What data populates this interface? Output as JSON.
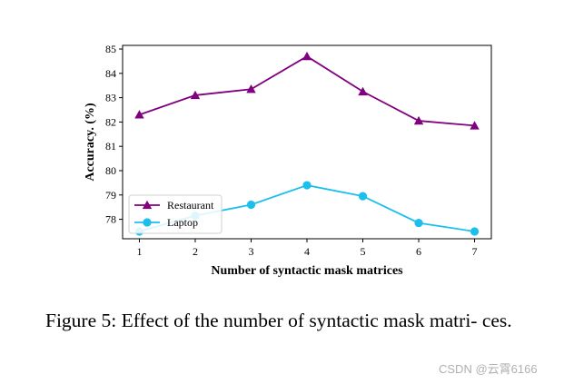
{
  "chart_data": {
    "type": "line",
    "x": [
      1,
      2,
      3,
      4,
      5,
      6,
      7
    ],
    "xlabel": "Number of syntactic mask matrices",
    "ylabel": "Accuracy. (%)",
    "xlim": [
      0.7,
      7.3
    ],
    "ylim": [
      77.2,
      85.15
    ],
    "xticks": [
      "1",
      "2",
      "3",
      "4",
      "5",
      "6",
      "7"
    ],
    "yticks": [
      "78",
      "79",
      "80",
      "81",
      "82",
      "83",
      "84",
      "85"
    ],
    "grid": false,
    "legend_position": "lower-left",
    "series": [
      {
        "name": "Restaurant",
        "color": "#800080",
        "marker": "triangle",
        "values": [
          82.3,
          83.1,
          83.35,
          84.7,
          83.25,
          82.05,
          81.85
        ]
      },
      {
        "name": "Laptop",
        "color": "#1bbfeb",
        "marker": "circle",
        "values": [
          77.5,
          78.15,
          78.6,
          79.4,
          78.95,
          77.85,
          77.5
        ]
      }
    ]
  },
  "caption": "Figure 5: Effect of the number of syntactic mask matri- ces.",
  "watermark": "CSDN @云霄6166"
}
